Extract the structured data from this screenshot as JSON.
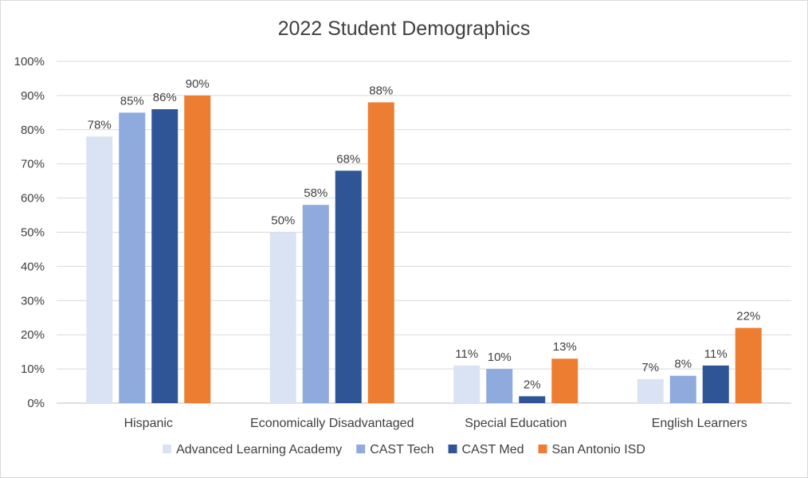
{
  "chart_data": {
    "type": "bar",
    "title": "2022 Student Demographics",
    "xlabel": "",
    "ylabel": "",
    "ylim": [
      0,
      100
    ],
    "ytick_values": [
      0,
      10,
      20,
      30,
      40,
      50,
      60,
      70,
      80,
      90,
      100
    ],
    "ytick_labels": [
      "0%",
      "10%",
      "20%",
      "30%",
      "40%",
      "50%",
      "60%",
      "70%",
      "80%",
      "90%",
      "100%"
    ],
    "grid": true,
    "legend_position": "bottom",
    "categories": [
      "Hispanic",
      "Economically Disadvantaged",
      "Special Education",
      "English Learners"
    ],
    "series": [
      {
        "name": "Advanced Learning Academy",
        "color": "#dae3f3",
        "values": [
          78,
          50,
          11,
          7
        ]
      },
      {
        "name": "CAST Tech",
        "color": "#8faadc",
        "values": [
          85,
          58,
          10,
          8
        ]
      },
      {
        "name": "CAST Med",
        "color": "#2f5597",
        "values": [
          86,
          68,
          2,
          11
        ]
      },
      {
        "name": "San Antonio ISD",
        "color": "#ed7d31",
        "values": [
          90,
          88,
          13,
          22
        ]
      }
    ],
    "value_suffix": "%"
  }
}
